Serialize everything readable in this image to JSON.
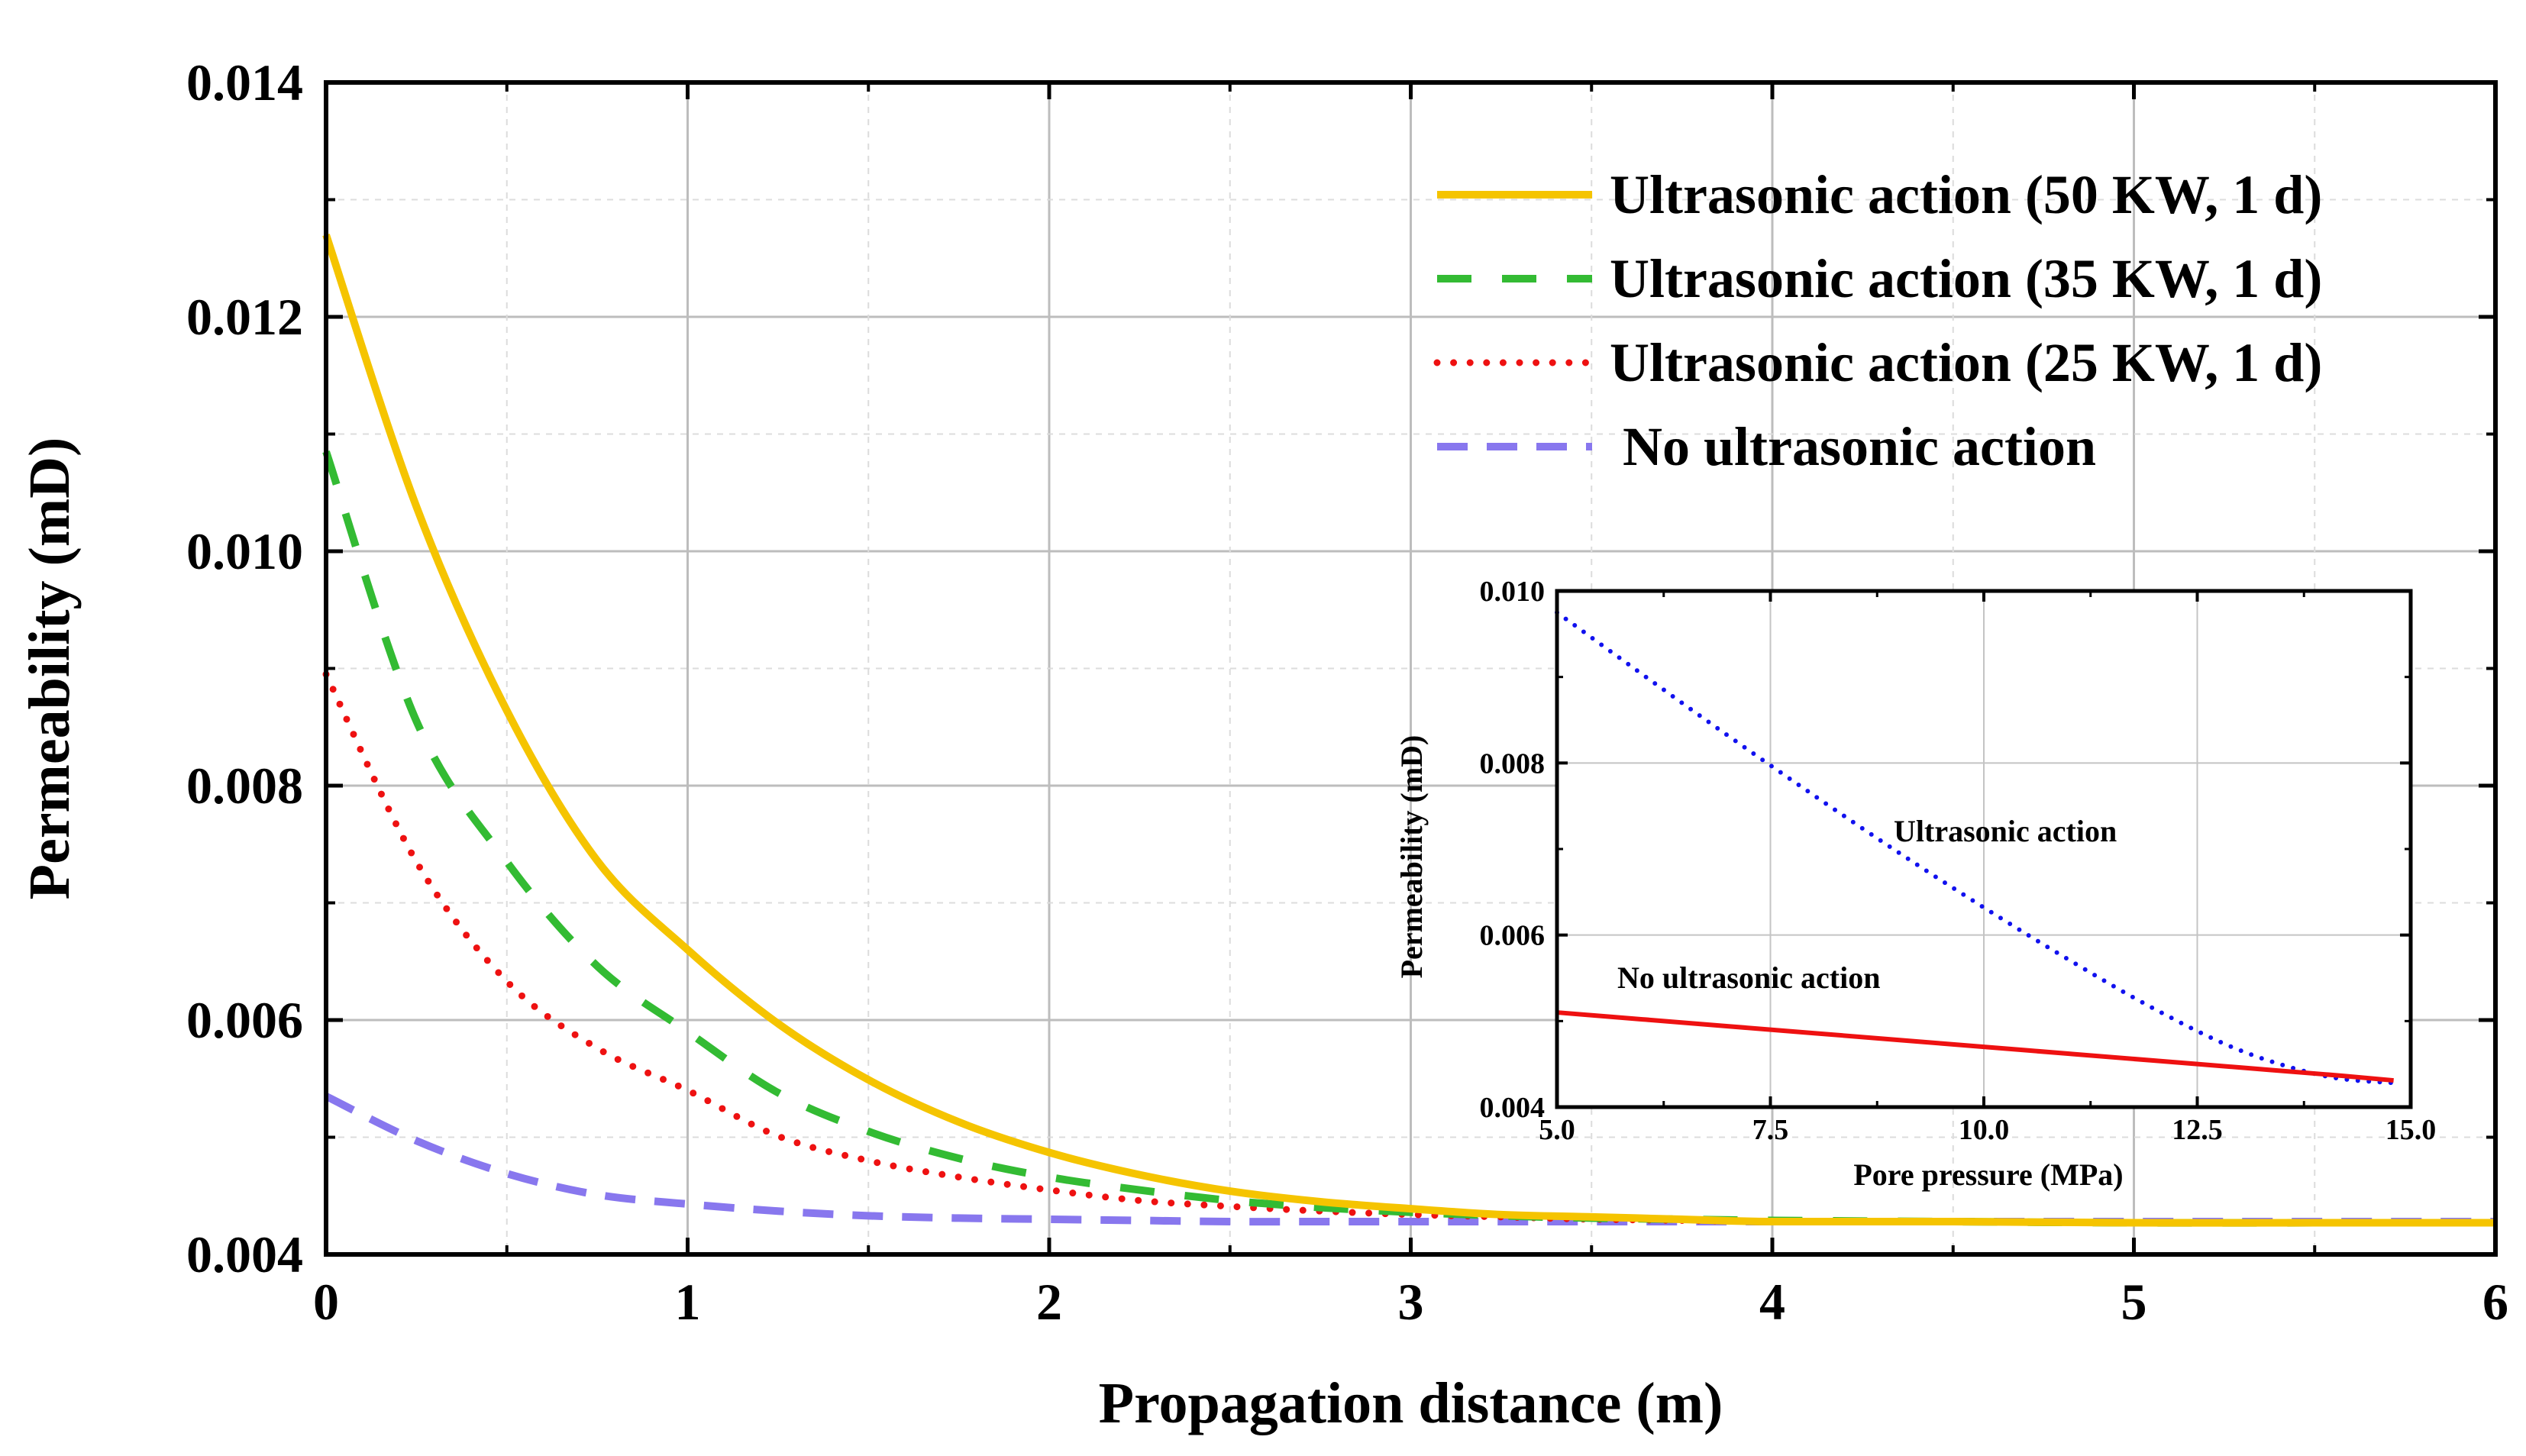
{
  "chart_data": [
    {
      "id": "main",
      "type": "line",
      "title": "",
      "xlabel": "Propagation distance (m)",
      "ylabel": "Permeability (mD)",
      "xlim": [
        0,
        6
      ],
      "ylim": [
        0.004,
        0.014
      ],
      "xticks": [
        0,
        1,
        2,
        3,
        4,
        5,
        6
      ],
      "xtick_labels": [
        "0",
        "1",
        "2",
        "3",
        "4",
        "5",
        "6"
      ],
      "yticks": [
        0.004,
        0.006,
        0.008,
        0.01,
        0.012,
        0.014
      ],
      "ytick_labels": [
        "0.004",
        "0.006",
        "0.008",
        "0.010",
        "0.012",
        "0.014"
      ],
      "grid": true,
      "legend_position": "top-right",
      "x": [
        0,
        0.25,
        0.5,
        0.75,
        1,
        1.25,
        1.5,
        1.75,
        2,
        2.25,
        2.5,
        2.75,
        3,
        3.25,
        3.5,
        3.75,
        4,
        4.5,
        5,
        5.5,
        6
      ],
      "series": [
        {
          "name": "Ultrasonic action (50 KW, 1 d)",
          "color": "#f5c400",
          "style": "solid",
          "values": [
            0.0127,
            0.01038,
            0.00864,
            0.00736,
            0.0066,
            0.00597,
            0.00549,
            0.00513,
            0.00487,
            0.00468,
            0.00454,
            0.00445,
            0.00439,
            0.00434,
            0.00432,
            0.0043,
            0.00428,
            0.00428,
            0.00427,
            0.00427,
            0.00427
          ]
        },
        {
          "name": "Ultrasonic action (35 KW, 1 d)",
          "color": "#33bb33",
          "style": "dashdot",
          "values": [
            0.01085,
            0.00855,
            0.00735,
            0.00646,
            0.0059,
            0.00538,
            0.00505,
            0.00482,
            0.00466,
            0.00455,
            0.00446,
            0.0044,
            0.00436,
            0.00433,
            0.00431,
            0.0043,
            0.00429,
            0.00428,
            0.00427,
            0.00427,
            0.00427
          ]
        },
        {
          "name": "Ultrasonic action (25 KW, 1 d)",
          "color": "#ee1111",
          "style": "dotted",
          "values": [
            0.00895,
            0.00735,
            0.00633,
            0.00576,
            0.0054,
            0.00501,
            0.0048,
            0.00466,
            0.00455,
            0.00446,
            0.00441,
            0.00437,
            0.00434,
            0.00432,
            0.0043,
            0.00429,
            0.00428,
            0.00428,
            0.00427,
            0.00427,
            0.00427
          ]
        },
        {
          "name": "No ultrasonic action",
          "color": "#8877ee",
          "style": "dashed",
          "values": [
            0.00535,
            0.00497,
            0.00469,
            0.00451,
            0.00443,
            0.00437,
            0.00433,
            0.00431,
            0.0043,
            0.00429,
            0.00428,
            0.00428,
            0.00428,
            0.00428,
            0.00428,
            0.00428,
            0.00428,
            0.00428,
            0.00428,
            0.00428,
            0.00428
          ]
        }
      ]
    },
    {
      "id": "inset",
      "type": "line",
      "title": "",
      "xlabel": "Pore pressure (MPa)",
      "ylabel": "Permeability (mD)",
      "xlim": [
        5.0,
        15.0
      ],
      "ylim": [
        0.004,
        0.01
      ],
      "xticks": [
        5.0,
        7.5,
        10.0,
        12.5,
        15.0
      ],
      "xtick_labels": [
        "5.0",
        "7.5",
        "10.0",
        "12.5",
        "15.0"
      ],
      "yticks": [
        0.004,
        0.006,
        0.008,
        0.01
      ],
      "ytick_labels": [
        "0.004",
        "0.006",
        "0.008",
        "0.010"
      ],
      "grid": true,
      "annotations": [
        "Ultrasonic action",
        "No ultrasonic action"
      ],
      "x": [
        5.0,
        6.0,
        7.0,
        8.0,
        9.0,
        10.0,
        11.0,
        12.0,
        13.0,
        14.0,
        14.8
      ],
      "series": [
        {
          "name": "Ultrasonic action",
          "color": "#1111ee",
          "style": "dotted",
          "values": [
            0.00975,
            0.00903,
            0.00832,
            0.00763,
            0.00696,
            0.00632,
            0.00571,
            0.00514,
            0.00466,
            0.00436,
            0.00428
          ]
        },
        {
          "name": "No ultrasonic action",
          "color": "#ee1111",
          "style": "solid",
          "values": [
            0.0051,
            0.00502,
            0.00494,
            0.00486,
            0.00478,
            0.0047,
            0.00462,
            0.00454,
            0.00446,
            0.00438,
            0.00431
          ]
        }
      ]
    }
  ]
}
